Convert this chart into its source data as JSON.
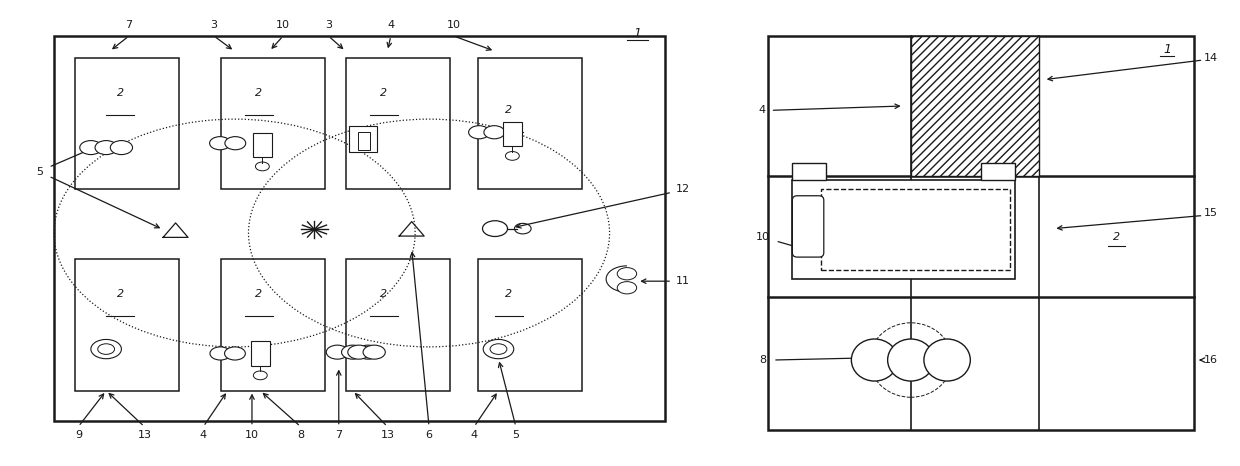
{
  "bg_color": "#ffffff",
  "line_color": "#1a1a1a",
  "fig_width": 12.4,
  "fig_height": 4.66
}
